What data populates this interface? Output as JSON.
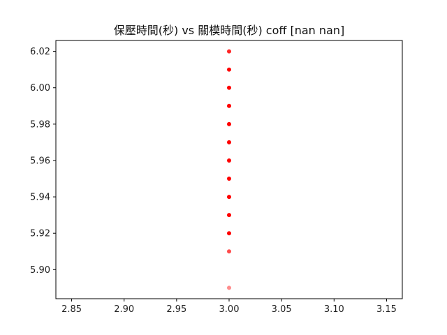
{
  "chart_data": {
    "type": "scatter",
    "title": "保壓時間(秒) vs 關模時間(秒) coff [nan nan]",
    "xlabel": "",
    "ylabel": "",
    "xlim": [
      2.835,
      3.165
    ],
    "ylim": [
      5.884,
      6.026
    ],
    "xticks": [
      2.85,
      2.9,
      2.95,
      3.0,
      3.05,
      3.1,
      3.15
    ],
    "xtick_labels": [
      "2.85",
      "2.90",
      "2.95",
      "3.00",
      "3.05",
      "3.10",
      "3.15"
    ],
    "yticks": [
      5.9,
      5.92,
      5.94,
      5.96,
      5.98,
      6.0,
      6.02
    ],
    "ytick_labels": [
      "5.90",
      "5.92",
      "5.94",
      "5.96",
      "5.98",
      "6.00",
      "6.02"
    ],
    "grid": false,
    "legend": "none",
    "series": [
      {
        "color": "#ff0000",
        "points": [
          {
            "x": 3.0,
            "y": 6.02,
            "alpha": 0.85
          },
          {
            "x": 3.0,
            "y": 6.01,
            "alpha": 1.0
          },
          {
            "x": 3.0,
            "y": 6.0,
            "alpha": 1.0
          },
          {
            "x": 3.0,
            "y": 5.99,
            "alpha": 1.0
          },
          {
            "x": 3.0,
            "y": 5.98,
            "alpha": 1.0
          },
          {
            "x": 3.0,
            "y": 5.97,
            "alpha": 1.0
          },
          {
            "x": 3.0,
            "y": 5.96,
            "alpha": 1.0
          },
          {
            "x": 3.0,
            "y": 5.95,
            "alpha": 1.0
          },
          {
            "x": 3.0,
            "y": 5.94,
            "alpha": 1.0
          },
          {
            "x": 3.0,
            "y": 5.93,
            "alpha": 1.0
          },
          {
            "x": 3.0,
            "y": 5.92,
            "alpha": 1.0
          },
          {
            "x": 3.0,
            "y": 5.91,
            "alpha": 0.7
          },
          {
            "x": 3.0,
            "y": 5.89,
            "alpha": 0.45
          }
        ]
      }
    ]
  }
}
